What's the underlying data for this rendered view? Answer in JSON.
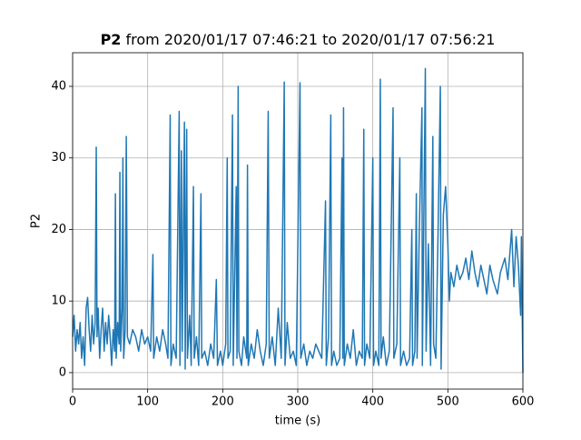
{
  "chart_data": {
    "type": "line",
    "title": {
      "bold": "P2",
      "rest": "from 2020/01/17 07:46:21 to 2020/01/17 07:56:21"
    },
    "xlabel": "time (s)",
    "ylabel": "P2",
    "color": "#1f77b4",
    "grid": true,
    "xlim": [
      0,
      600
    ],
    "ylim": [
      -2.3,
      44.7
    ],
    "xticks": [
      0,
      100,
      200,
      300,
      400,
      500,
      600
    ],
    "yticks": [
      0,
      10,
      20,
      30,
      40
    ],
    "x": [
      0,
      2,
      4,
      6,
      8,
      10,
      12,
      14,
      16,
      18,
      20,
      22,
      24,
      26,
      28,
      30,
      31.5,
      32.5,
      34,
      36,
      38,
      40,
      42,
      44,
      46,
      48,
      50,
      52,
      54,
      56,
      57,
      58,
      60,
      62,
      63,
      64,
      66,
      67,
      68,
      70,
      71.5,
      73,
      76,
      80,
      84,
      88,
      92,
      96,
      100,
      104,
      107,
      108,
      112,
      116,
      120,
      124,
      127,
      130,
      131,
      134,
      138,
      142,
      143,
      145,
      146,
      149,
      150,
      152,
      153,
      156,
      158,
      161,
      162,
      165,
      168,
      171,
      172,
      176,
      180,
      184,
      188,
      191.5,
      193,
      197,
      200,
      204,
      206,
      207,
      210,
      213,
      214,
      218,
      219,
      220.6,
      221.5,
      225,
      228,
      232,
      233,
      234,
      238,
      242,
      246,
      250,
      254,
      258,
      260.6,
      262,
      266,
      270,
      274,
      278,
      282,
      283,
      286,
      290,
      294,
      298,
      303,
      304,
      308,
      312,
      316,
      320,
      324,
      328,
      332,
      337,
      338,
      341,
      344,
      345,
      348,
      352,
      356,
      359,
      360,
      361,
      362,
      366,
      370,
      374,
      378,
      382,
      386,
      388,
      389,
      392,
      396,
      400,
      401,
      404,
      408,
      410,
      411,
      414,
      418,
      422,
      427,
      428,
      432,
      436,
      437,
      441,
      445,
      449,
      452,
      453,
      456,
      458,
      459,
      462,
      465.5,
      466,
      470,
      471,
      474,
      477,
      480,
      481,
      484,
      487,
      490,
      491,
      494,
      497,
      500,
      502,
      504,
      508,
      512,
      516,
      520,
      524,
      528,
      532,
      536,
      540,
      544,
      548,
      552,
      556,
      560,
      566,
      570,
      576,
      580,
      585,
      588,
      591,
      594,
      597,
      598,
      600
    ],
    "values": [
      5,
      8,
      3,
      6,
      4,
      7,
      2,
      5,
      1,
      9,
      10.5,
      6,
      3,
      8,
      4,
      7,
      31.5,
      5,
      9,
      2,
      6,
      9,
      3,
      7,
      4,
      8,
      5,
      1,
      6,
      3,
      25,
      2,
      7,
      4,
      28,
      3,
      9,
      30,
      2,
      6,
      33,
      5,
      4,
      6,
      5,
      3,
      6,
      4,
      5,
      3,
      16.5,
      2,
      5,
      3,
      6,
      4,
      2,
      36,
      1,
      4,
      2,
      36.5,
      1,
      31,
      3,
      35,
      0.5,
      34,
      2,
      8,
      1,
      26,
      2,
      5,
      1,
      25,
      2,
      3,
      1,
      4,
      2,
      13,
      1,
      3,
      1,
      4,
      30,
      2,
      3,
      36,
      1,
      26,
      2,
      40,
      3,
      1,
      5,
      2,
      29,
      1,
      4,
      2,
      6,
      3,
      1,
      4,
      36.5,
      2,
      5,
      1,
      9,
      2,
      40.6,
      1,
      7,
      2,
      3,
      1,
      40.5,
      2,
      4,
      1,
      3,
      2,
      4,
      3,
      2,
      24,
      1,
      5,
      36,
      1,
      3,
      1,
      2,
      30,
      2,
      37,
      1,
      4,
      2,
      6,
      1,
      3,
      2,
      34,
      1,
      4,
      2,
      30,
      1,
      3,
      1,
      41,
      2,
      5,
      1,
      3,
      37,
      2,
      4,
      30,
      1,
      3,
      1,
      2,
      20,
      1,
      3,
      25,
      2,
      20,
      37,
      1,
      42.5,
      3,
      18,
      1,
      33,
      4,
      2,
      20,
      40,
      0.5,
      22,
      26,
      18,
      10,
      14,
      12,
      15,
      13,
      14,
      16,
      13,
      17,
      14,
      12,
      15,
      13,
      11,
      15,
      13,
      11,
      14,
      16,
      13,
      20,
      12,
      19,
      15,
      8,
      19,
      0
    ]
  }
}
